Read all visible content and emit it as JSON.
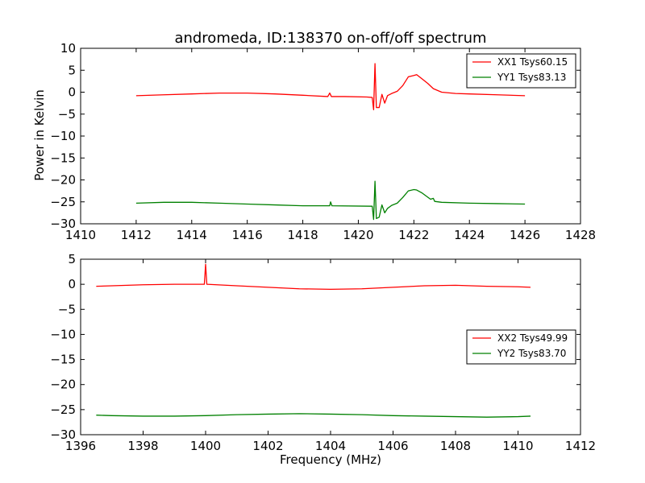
{
  "figure": {
    "title": "andromeda, ID:138370 on-off/off spectrum",
    "ylabel": "Power in Kelvin",
    "xlabel": "Frequency (MHz)"
  },
  "chart_data": [
    {
      "type": "line",
      "title": "andromeda, ID:138370 on-off/off spectrum",
      "xlabel": "",
      "ylabel": "Power in Kelvin",
      "xlim": [
        1410,
        1428
      ],
      "ylim": [
        -30,
        10
      ],
      "xticks": [
        1410,
        1412,
        1414,
        1416,
        1418,
        1420,
        1422,
        1424,
        1426,
        1428
      ],
      "yticks": [
        10,
        5,
        0,
        -5,
        -10,
        -15,
        -20,
        -25,
        -30
      ],
      "grid": false,
      "legend": "top-right",
      "series": [
        {
          "name": "XX1 Tsys60.15",
          "color": "#ff0000",
          "points": [
            [
              1412,
              -0.8
            ],
            [
              1413,
              -0.6
            ],
            [
              1414,
              -0.4
            ],
            [
              1415,
              -0.2
            ],
            [
              1416,
              -0.2
            ],
            [
              1417,
              -0.4
            ],
            [
              1418,
              -0.7
            ],
            [
              1418.9,
              -1.0
            ],
            [
              1418.97,
              -0.2
            ],
            [
              1419.03,
              -1.0
            ],
            [
              1419.5,
              -1.0
            ],
            [
              1420.3,
              -1.1
            ],
            [
              1420.5,
              -1.2
            ],
            [
              1420.55,
              -4.0
            ],
            [
              1420.6,
              6.5
            ],
            [
              1420.65,
              -3.5
            ],
            [
              1420.75,
              -3.5
            ],
            [
              1420.85,
              -0.5
            ],
            [
              1420.95,
              -2.5
            ],
            [
              1421.05,
              -0.8
            ],
            [
              1421.2,
              -0.3
            ],
            [
              1421.4,
              0.2
            ],
            [
              1421.6,
              1.5
            ],
            [
              1421.8,
              3.5
            ],
            [
              1422.0,
              3.8
            ],
            [
              1422.1,
              4.0
            ],
            [
              1422.3,
              3.0
            ],
            [
              1422.5,
              2.0
            ],
            [
              1422.7,
              0.8
            ],
            [
              1423.0,
              0
            ],
            [
              1423.5,
              -0.3
            ],
            [
              1424,
              -0.4
            ],
            [
              1425,
              -0.6
            ],
            [
              1426,
              -0.8
            ]
          ]
        },
        {
          "name": "YY1 Tsys83.13",
          "color": "#008000",
          "points": [
            [
              1412,
              -25.3
            ],
            [
              1413,
              -25.1
            ],
            [
              1414,
              -25.1
            ],
            [
              1415,
              -25.3
            ],
            [
              1416,
              -25.5
            ],
            [
              1417,
              -25.7
            ],
            [
              1418,
              -25.9
            ],
            [
              1418.97,
              -25.9
            ],
            [
              1419.0,
              -25.0
            ],
            [
              1419.05,
              -25.9
            ],
            [
              1420.5,
              -26.0
            ],
            [
              1420.55,
              -29.0
            ],
            [
              1420.6,
              -20.3
            ],
            [
              1420.65,
              -28.8
            ],
            [
              1420.75,
              -28.5
            ],
            [
              1420.85,
              -25.7
            ],
            [
              1420.95,
              -27.5
            ],
            [
              1421.05,
              -26.5
            ],
            [
              1421.2,
              -25.8
            ],
            [
              1421.4,
              -25.3
            ],
            [
              1421.6,
              -24.0
            ],
            [
              1421.8,
              -22.5
            ],
            [
              1422.0,
              -22.2
            ],
            [
              1422.1,
              -22.3
            ],
            [
              1422.3,
              -23.0
            ],
            [
              1422.6,
              -24.4
            ],
            [
              1422.7,
              -24.2
            ],
            [
              1422.75,
              -24.9
            ],
            [
              1423,
              -25.1
            ],
            [
              1424,
              -25.3
            ],
            [
              1425,
              -25.4
            ],
            [
              1426,
              -25.5
            ]
          ]
        }
      ]
    },
    {
      "type": "line",
      "title": "",
      "xlabel": "Frequency (MHz)",
      "ylabel": "",
      "xlim": [
        1396,
        1412
      ],
      "ylim": [
        -30,
        5
      ],
      "xticks": [
        1396,
        1398,
        1400,
        1402,
        1404,
        1406,
        1408,
        1410,
        1412
      ],
      "yticks": [
        5,
        0,
        -5,
        -10,
        -15,
        -20,
        -25,
        -30
      ],
      "grid": false,
      "legend": "right",
      "series": [
        {
          "name": "XX2 Tsys49.99",
          "color": "#ff0000",
          "points": [
            [
              1396.5,
              -0.4
            ],
            [
              1397,
              -0.3
            ],
            [
              1398,
              -0.1
            ],
            [
              1399,
              0
            ],
            [
              1399.96,
              0
            ],
            [
              1400.0,
              4.0
            ],
            [
              1400.04,
              0
            ],
            [
              1401,
              -0.3
            ],
            [
              1402,
              -0.6
            ],
            [
              1403,
              -0.9
            ],
            [
              1404,
              -1.0
            ],
            [
              1405,
              -0.9
            ],
            [
              1406,
              -0.6
            ],
            [
              1407,
              -0.3
            ],
            [
              1408,
              -0.2
            ],
            [
              1409,
              -0.4
            ],
            [
              1410,
              -0.5
            ],
            [
              1410.4,
              -0.6
            ]
          ]
        },
        {
          "name": "YY2 Tsys83.70",
          "color": "#008000",
          "points": [
            [
              1396.5,
              -26.1
            ],
            [
              1397,
              -26.2
            ],
            [
              1398,
              -26.3
            ],
            [
              1399,
              -26.3
            ],
            [
              1400,
              -26.2
            ],
            [
              1401,
              -26.0
            ],
            [
              1402,
              -25.9
            ],
            [
              1403,
              -25.8
            ],
            [
              1404,
              -25.9
            ],
            [
              1405,
              -26.0
            ],
            [
              1406,
              -26.2
            ],
            [
              1407,
              -26.3
            ],
            [
              1408,
              -26.4
            ],
            [
              1409,
              -26.5
            ],
            [
              1410,
              -26.4
            ],
            [
              1410.4,
              -26.3
            ]
          ]
        }
      ]
    }
  ]
}
